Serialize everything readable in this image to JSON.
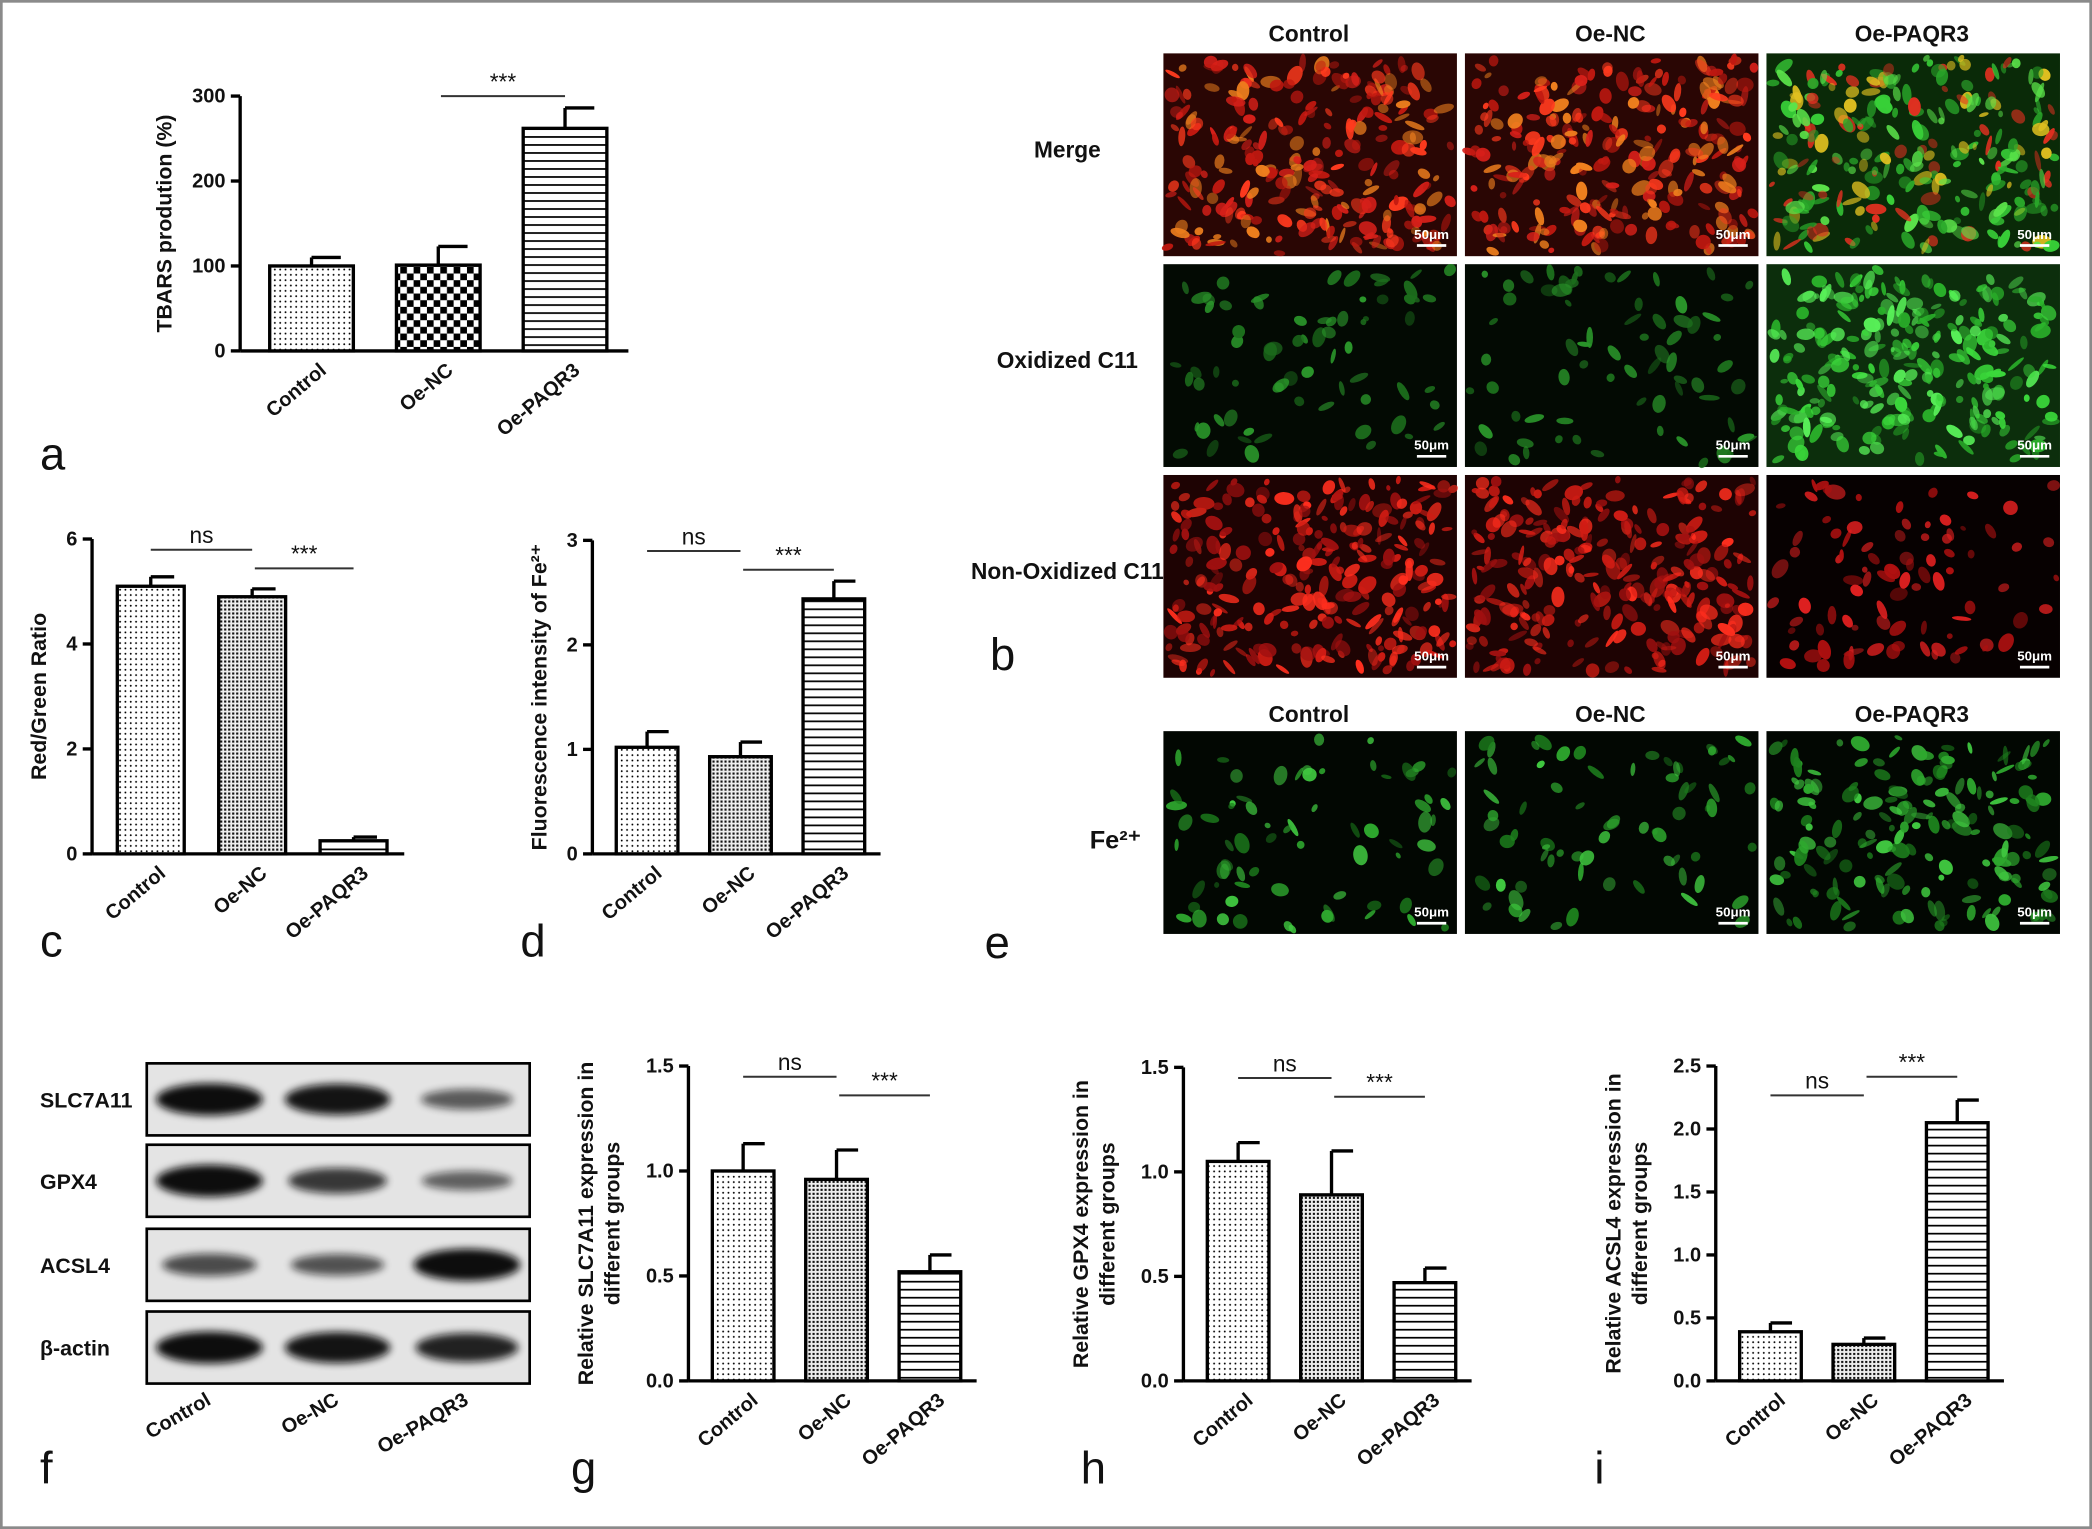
{
  "chart_data": [
    {
      "type": "bar",
      "panel": "a",
      "ylabel": [
        "TBARS prodution (%)"
      ],
      "categories": [
        "Control",
        "Oe-NC",
        "Oe-PAQR3"
      ],
      "values": [
        100,
        101,
        262
      ],
      "errors": [
        10,
        22,
        24
      ],
      "fills": [
        "dots",
        "checker",
        "hlines"
      ],
      "color": "#000000",
      "ylim": [
        0,
        300
      ],
      "yticks": [
        0,
        100,
        200,
        300
      ],
      "annotations": [
        {
          "text": "***",
          "between": [
            "Oe-NC",
            "Oe-PAQR3"
          ]
        }
      ]
    },
    {
      "type": "bar",
      "panel": "c",
      "ylabel": [
        "Red/Green Ratio"
      ],
      "categories": [
        "Control",
        "Oe-NC",
        "Oe-PAQR3"
      ],
      "values": [
        5.1,
        4.9,
        0.25
      ],
      "errors": [
        0.18,
        0.15,
        0.07
      ],
      "fills": [
        "dots",
        "fine",
        "hlines"
      ],
      "color": "#000000",
      "ylim": [
        0,
        6
      ],
      "yticks": [
        0,
        2,
        4,
        6
      ],
      "annotations": [
        {
          "text": "ns",
          "between": [
            "Control",
            "Oe-NC"
          ]
        },
        {
          "text": "***",
          "between": [
            "Oe-NC",
            "Oe-PAQR3"
          ]
        }
      ]
    },
    {
      "type": "bar",
      "panel": "d",
      "ylabel": [
        "Fluorescence intensity of Fe²⁺"
      ],
      "categories": [
        "Control",
        "Oe-NC",
        "Oe-PAQR3"
      ],
      "values": [
        1.02,
        0.93,
        2.44
      ],
      "errors": [
        0.15,
        0.14,
        0.17
      ],
      "fills": [
        "dots",
        "fine",
        "hlines"
      ],
      "color": "#000000",
      "ylim": [
        0,
        3
      ],
      "yticks": [
        0,
        1,
        2,
        3
      ],
      "annotations": [
        {
          "text": "ns",
          "between": [
            "Control",
            "Oe-NC"
          ]
        },
        {
          "text": "***",
          "between": [
            "Oe-NC",
            "Oe-PAQR3"
          ]
        }
      ]
    },
    {
      "type": "bar",
      "panel": "g",
      "ylabel": [
        "Relative SLC7A11 expression in",
        "different groups"
      ],
      "categories": [
        "Control",
        "Oe-NC",
        "Oe-PAQR3"
      ],
      "values": [
        1.0,
        0.96,
        0.52
      ],
      "errors": [
        0.13,
        0.14,
        0.08
      ],
      "fills": [
        "dots",
        "fine",
        "hlines"
      ],
      "color": "#000000",
      "ylim": [
        0,
        1.5
      ],
      "yticks": [
        {
          "value": 0,
          "label": "0.0"
        },
        0.5,
        {
          "value": 1,
          "label": "1.0"
        },
        1.5
      ],
      "annotations": [
        {
          "text": "ns",
          "between": [
            "Control",
            "Oe-NC"
          ]
        },
        {
          "text": "***",
          "between": [
            "Oe-NC",
            "Oe-PAQR3"
          ]
        }
      ]
    },
    {
      "type": "bar",
      "panel": "h",
      "ylabel": [
        "Relative GPX4 expression in",
        "different groups"
      ],
      "categories": [
        "Control",
        "Oe-NC",
        "Oe-PAQR3"
      ],
      "values": [
        1.05,
        0.89,
        0.47
      ],
      "errors": [
        0.09,
        0.21,
        0.07
      ],
      "fills": [
        "dots",
        "fine",
        "hlines"
      ],
      "color": "#000000",
      "ylim": [
        0,
        1.5
      ],
      "yticks": [
        {
          "value": 0,
          "label": "0.0"
        },
        0.5,
        {
          "value": 1,
          "label": "1.0"
        },
        1.5
      ],
      "annotations": [
        {
          "text": "ns",
          "between": [
            "Control",
            "Oe-NC"
          ]
        },
        {
          "text": "***",
          "between": [
            "Oe-NC",
            "Oe-PAQR3"
          ]
        }
      ]
    },
    {
      "type": "bar",
      "panel": "i",
      "ylabel": [
        "Relative ACSL4 expression in",
        "different groups"
      ],
      "categories": [
        "Control",
        "Oe-NC",
        "Oe-PAQR3"
      ],
      "values": [
        0.39,
        0.29,
        2.05
      ],
      "errors": [
        0.07,
        0.05,
        0.18
      ],
      "fills": [
        "dots",
        "fine",
        "hlines"
      ],
      "color": "#000000",
      "ylim": [
        0,
        2.5
      ],
      "yticks": [
        {
          "value": 0,
          "label": "0.0"
        },
        0.5,
        {
          "value": 1,
          "label": "1.0"
        },
        1.5,
        {
          "value": 2,
          "label": "2.0"
        },
        2.5
      ],
      "annotations": [
        {
          "text": "***",
          "between": [
            "Oe-NC",
            "Oe-PAQR3"
          ]
        },
        {
          "text": "ns",
          "between": [
            "Control",
            "Oe-NC"
          ]
        }
      ]
    }
  ],
  "micrographs": {
    "panel_top": "b",
    "panel_bottom": "e",
    "columns": [
      "Control",
      "Oe-NC",
      "Oe-PAQR3"
    ],
    "rows": [
      "Merge",
      "Oxidized C11",
      "Non-Oxidized C11"
    ],
    "fe_row": "Fe²⁺",
    "scale_bar": "50μm"
  },
  "blot": {
    "panel": "f",
    "rows": [
      "SLC7A11",
      "GPX4",
      "ACSL4",
      "β-actin"
    ],
    "columns": [
      "Control",
      "Oe-NC",
      "Oe-PAQR3"
    ]
  }
}
